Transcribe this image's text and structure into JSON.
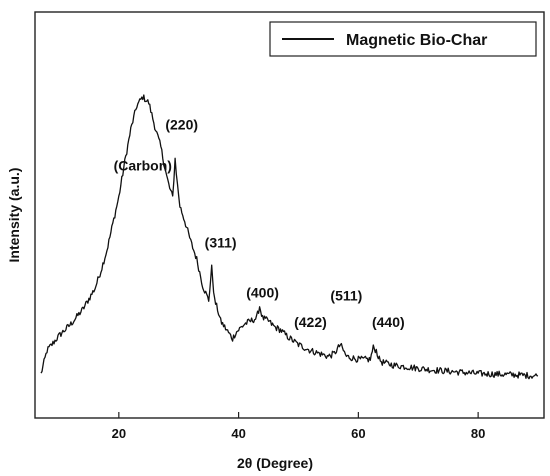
{
  "chart_data": {
    "type": "line",
    "title": "",
    "xlabel": "2θ (Degree)",
    "ylabel": "Intensity (a.u.)",
    "xlim": [
      6,
      91
    ],
    "ylim": [
      0,
      100
    ],
    "x_ticks": [
      20,
      40,
      60,
      80
    ],
    "y_ticks_shown": false,
    "grid": false,
    "legend_position": "top-right",
    "series": [
      {
        "name": "Magnetic Bio-Char",
        "color": "#111111",
        "x": [
          7,
          8,
          10,
          12,
          14,
          16,
          17,
          18,
          19,
          20,
          21,
          22,
          23,
          24,
          25,
          26,
          27,
          28,
          28.5,
          29,
          29.4,
          29.8,
          30.2,
          31,
          32,
          33,
          34,
          35,
          35.5,
          36,
          36.5,
          37,
          38,
          39,
          39.5,
          40,
          41,
          42,
          43,
          43.5,
          44,
          45,
          46,
          47,
          48,
          50,
          52,
          53.5,
          55,
          56,
          57,
          57.5,
          58,
          60,
          62,
          62.5,
          63,
          63.5,
          64,
          66,
          68,
          70,
          72,
          75,
          78,
          80,
          83,
          86,
          88,
          90
        ],
        "y": [
          3,
          11,
          16,
          20,
          25,
          32,
          38,
          45,
          54,
          63,
          75,
          86,
          94,
          97,
          95,
          87,
          80,
          70,
          66,
          63,
          76,
          67,
          60,
          55,
          48,
          42,
          33,
          28,
          39,
          28,
          25,
          21,
          18,
          15,
          17,
          18,
          20,
          21,
          22,
          26,
          22,
          21,
          19,
          18,
          16,
          13,
          11,
          10,
          9,
          10,
          13,
          11,
          9,
          8,
          8,
          12,
          11,
          8,
          7,
          6,
          5.5,
          5,
          4.5,
          4,
          3.5,
          3.2,
          3,
          2.8,
          2.6,
          2.4
        ]
      }
    ],
    "annotations": [
      {
        "text": "(Carbon)",
        "x": 24,
        "y": 72
      },
      {
        "text": "(220)",
        "x": 30.5,
        "y": 86
      },
      {
        "text": "(311)",
        "x": 37,
        "y": 46
      },
      {
        "text": "(400)",
        "x": 44,
        "y": 29
      },
      {
        "text": "(422)",
        "x": 52,
        "y": 19
      },
      {
        "text": "(511)",
        "x": 58,
        "y": 28
      },
      {
        "text": "(440)",
        "x": 65,
        "y": 19
      }
    ]
  }
}
